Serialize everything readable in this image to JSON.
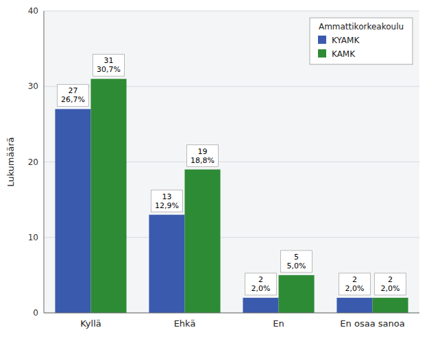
{
  "chart_data": {
    "type": "bar",
    "categories": [
      "Kyllä",
      "Ehkä",
      "En",
      "En osaa sanoa"
    ],
    "series": [
      {
        "name": "KYAMK",
        "color": "#3a5aad",
        "values": [
          27,
          13,
          2,
          2
        ],
        "value_labels": [
          "27\n26,7%",
          "13\n12,9%",
          "2\n2,0%",
          "2\n2,0%"
        ]
      },
      {
        "name": "KAMK",
        "color": "#2e8b35",
        "values": [
          31,
          19,
          5,
          2
        ],
        "value_labels": [
          "31\n30,7%",
          "19\n18,8%",
          "5\n5,0%",
          "2\n2,0%"
        ]
      }
    ],
    "ylabel": "Lukumäärä",
    "legend_title": "Ammattikorkeakoulu",
    "ylim": [
      0,
      40
    ],
    "yticks": [
      0,
      10,
      20,
      30,
      40
    ],
    "grid": true,
    "legend": "upper right",
    "data_labels": true
  }
}
